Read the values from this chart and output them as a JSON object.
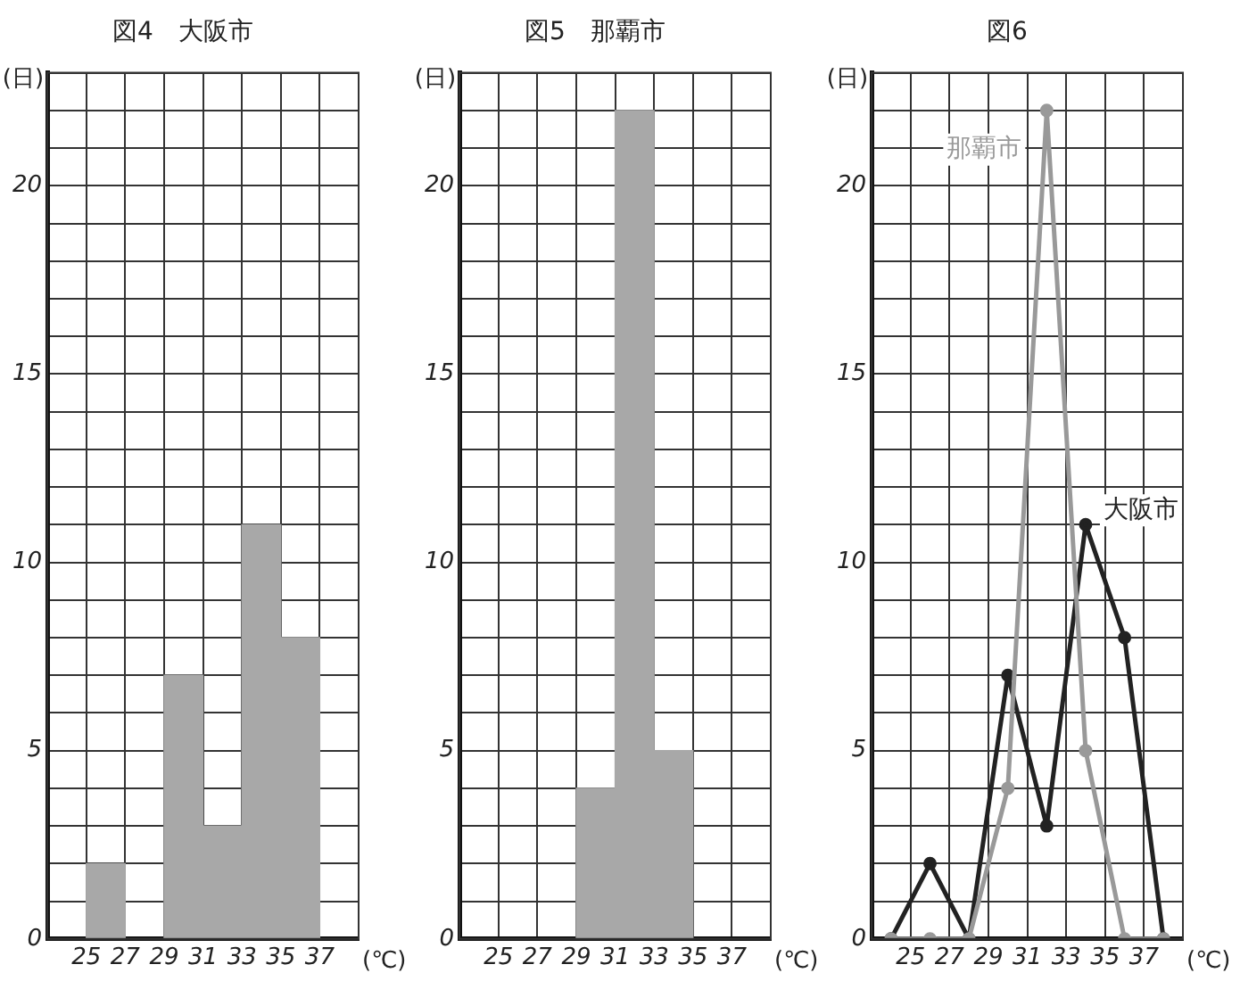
{
  "chart_data": [
    {
      "type": "histogram",
      "title": "図4　大阪市",
      "xlabel": "(℃)",
      "ylabel": "(日)",
      "bins": [
        25,
        27,
        29,
        31,
        33,
        35,
        37
      ],
      "values": [
        2,
        0,
        7,
        3,
        11,
        8
      ],
      "color": "#a8a8a8",
      "xlim": [
        23,
        39
      ],
      "ylim": [
        0,
        23
      ],
      "xticks": [
        25,
        27,
        29,
        31,
        33,
        35,
        37
      ],
      "yticks": [
        0,
        {
          "value": 1,
          "label": null
        },
        {
          "value": 2,
          "label": null
        },
        {
          "value": 3,
          "label": null
        },
        {
          "value": 4,
          "label": null
        },
        5,
        {
          "value": 6,
          "label": null
        },
        {
          "value": 7,
          "label": null
        },
        {
          "value": 8,
          "label": null
        },
        {
          "value": 9,
          "label": null
        },
        10,
        {
          "value": 11,
          "label": null
        },
        {
          "value": 12,
          "label": null
        },
        {
          "value": 13,
          "label": null
        },
        {
          "value": 14,
          "label": null
        },
        15,
        {
          "value": 16,
          "label": null
        },
        {
          "value": 17,
          "label": null
        },
        {
          "value": 18,
          "label": null
        },
        {
          "value": 19,
          "label": null
        },
        20,
        {
          "value": 21,
          "label": null
        },
        {
          "value": 22,
          "label": null
        },
        {
          "value": 23,
          "label": null
        }
      ],
      "grid": true,
      "legend": false
    },
    {
      "type": "histogram",
      "title": "図5　那覇市",
      "xlabel": "(℃)",
      "ylabel": "(日)",
      "bins": [
        25,
        27,
        29,
        31,
        33,
        35,
        37
      ],
      "values": [
        0,
        0,
        4,
        22,
        5,
        0
      ],
      "color": "#a8a8a8",
      "xlim": [
        23,
        39
      ],
      "ylim": [
        0,
        23
      ],
      "xticks": [
        25,
        27,
        29,
        31,
        33,
        35,
        37
      ],
      "yticks": [
        0,
        {
          "value": 1,
          "label": null
        },
        {
          "value": 2,
          "label": null
        },
        {
          "value": 3,
          "label": null
        },
        {
          "value": 4,
          "label": null
        },
        5,
        {
          "value": 6,
          "label": null
        },
        {
          "value": 7,
          "label": null
        },
        {
          "value": 8,
          "label": null
        },
        {
          "value": 9,
          "label": null
        },
        10,
        {
          "value": 11,
          "label": null
        },
        {
          "value": 12,
          "label": null
        },
        {
          "value": 13,
          "label": null
        },
        {
          "value": 14,
          "label": null
        },
        15,
        {
          "value": 16,
          "label": null
        },
        {
          "value": 17,
          "label": null
        },
        {
          "value": 18,
          "label": null
        },
        {
          "value": 19,
          "label": null
        },
        20,
        {
          "value": 21,
          "label": null
        },
        {
          "value": 22,
          "label": null
        },
        {
          "value": 23,
          "label": null
        }
      ],
      "grid": true,
      "legend": false
    },
    {
      "type": "line",
      "title": "図6",
      "xlabel": "(℃)",
      "ylabel": "(日)",
      "marker": "circle",
      "xlim": [
        23,
        39
      ],
      "ylim": [
        0,
        23
      ],
      "series": [
        {
          "name": "那覇市",
          "color": "#999999",
          "x": [
            24,
            26,
            28,
            30,
            32,
            34,
            36,
            38
          ],
          "values": [
            0,
            0,
            0,
            4,
            22,
            5,
            0,
            0
          ]
        },
        {
          "name": "大阪市",
          "color": "#222222",
          "x": [
            24,
            26,
            28,
            30,
            32,
            34,
            36,
            38
          ],
          "values": [
            0,
            2,
            0,
            7,
            3,
            11,
            8,
            0
          ]
        }
      ],
      "xticks": [
        25,
        27,
        29,
        31,
        33,
        35,
        37
      ],
      "yticks": [
        0,
        {
          "value": 1,
          "label": null
        },
        {
          "value": 2,
          "label": null
        },
        {
          "value": 3,
          "label": null
        },
        {
          "value": 4,
          "label": null
        },
        5,
        {
          "value": 6,
          "label": null
        },
        {
          "value": 7,
          "label": null
        },
        {
          "value": 8,
          "label": null
        },
        {
          "value": 9,
          "label": null
        },
        10,
        {
          "value": 11,
          "label": null
        },
        {
          "value": 12,
          "label": null
        },
        {
          "value": 13,
          "label": null
        },
        {
          "value": 14,
          "label": null
        },
        15,
        {
          "value": 16,
          "label": null
        },
        {
          "value": 17,
          "label": null
        },
        {
          "value": 18,
          "label": null
        },
        {
          "value": 19,
          "label": null
        },
        20,
        {
          "value": 21,
          "label": null
        },
        {
          "value": 22,
          "label": null
        },
        {
          "value": 23,
          "label": null
        }
      ],
      "grid": true,
      "legend": false
    }
  ]
}
